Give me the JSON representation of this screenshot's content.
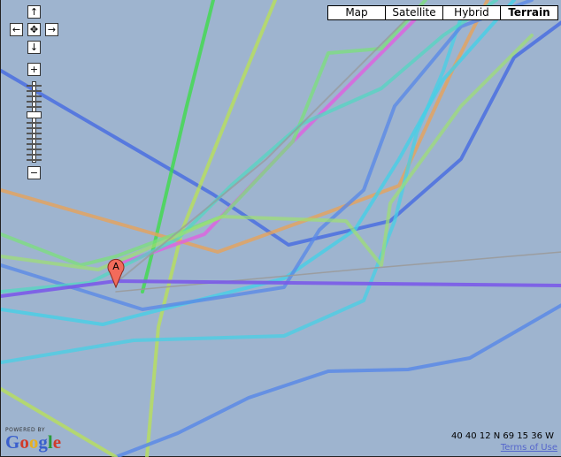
{
  "map_types": [
    {
      "label": "Map",
      "selected": false
    },
    {
      "label": "Satellite",
      "selected": false
    },
    {
      "label": "Hybrid",
      "selected": false
    },
    {
      "label": "Terrain",
      "selected": true
    }
  ],
  "controls": {
    "pan_up": "↑",
    "pan_left": "←",
    "pan_center": "✥",
    "pan_right": "→",
    "pan_down": "↓",
    "zoom_in": "+",
    "zoom_out": "−",
    "zoom_level_fraction": 0.45
  },
  "marker": {
    "label": "A",
    "color": "#f26b5b"
  },
  "coordinates": "40 40 12 N 69 15 36 W",
  "terms_link": "Terms of Use",
  "logo": {
    "powered_by": "POWERED BY",
    "brand": "Google"
  },
  "colors": {
    "water": "#9eb4cf"
  }
}
